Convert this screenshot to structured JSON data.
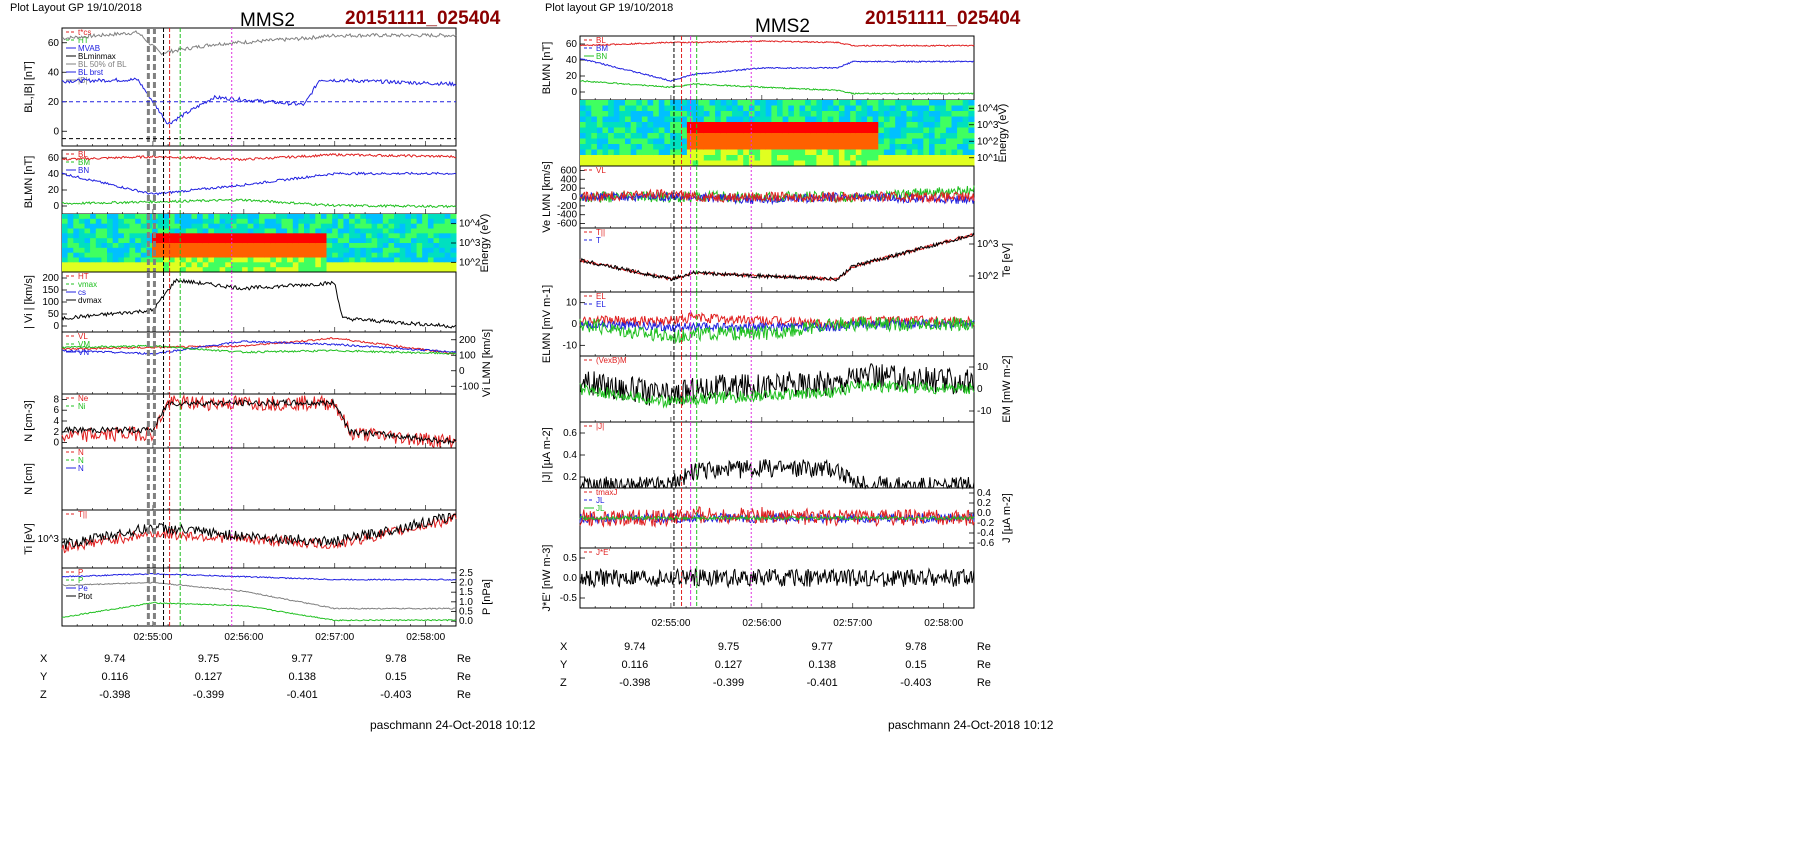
{
  "left": {
    "plot_layout": "Plot Layout GP 19/10/2018",
    "title": "MMS2",
    "event": "20151111_025404",
    "footer": "paschmann 24-Oct-2018 10:12"
  },
  "right": {
    "plot_layout": "Plot layout GP 19/10/2018",
    "title": "MMS2",
    "event": "20151111_025404",
    "footer": "paschmann 24-Oct-2018 10:12"
  },
  "time_ticks": [
    "02:55:00",
    "02:56:00",
    "02:57:00",
    "02:58:00"
  ],
  "position": {
    "rows": [
      {
        "label": "X",
        "values": [
          "9.74",
          "9.75",
          "9.77",
          "9.78"
        ],
        "unit": "Re"
      },
      {
        "label": "Y",
        "values": [
          "0.116",
          "0.127",
          "0.138",
          "0.15"
        ],
        "unit": "Re"
      },
      {
        "label": "Z",
        "values": [
          "-0.398",
          "-0.399",
          "-0.401",
          "-0.403"
        ],
        "unit": "Re"
      }
    ]
  },
  "colors": {
    "black": "#000000",
    "red": "#e02020",
    "green": "#20c020",
    "blue": "#2020e0",
    "gray": "#808080",
    "magenta": "#e030e0",
    "darkred": "#8b0000",
    "cyan": "#00b0e0"
  },
  "chart_data": [
    {
      "type": "line",
      "panel": "left-1",
      "ylabel": "BL,|B| [nT]",
      "yticks": [
        "0",
        "20",
        "40",
        "60"
      ],
      "ylim": [
        -5,
        75
      ],
      "legend": [
        "t*cs",
        "HT",
        "MVAB",
        "BLminmax",
        "BL 50% of BL",
        "BL brst",
        "|B|"
      ],
      "series": [
        {
          "name": "|B|",
          "x": [
            "02:54:00",
            "02:54:50",
            "02:55:05",
            "02:55:40",
            "02:56:40",
            "02:57:00",
            "02:58:20"
          ],
          "y": [
            68,
            72,
            58,
            64,
            68,
            70,
            70
          ]
        },
        {
          "name": "BL brst",
          "x": [
            "02:54:00",
            "02:54:50",
            "02:55:10",
            "02:55:40",
            "02:56:40",
            "02:56:50",
            "02:58:20"
          ],
          "y": [
            39,
            40,
            10,
            28,
            23,
            40,
            37
          ]
        }
      ]
    },
    {
      "type": "line",
      "panel": "left-2",
      "ylabel": "BLMN [nT]",
      "yticks": [
        "0",
        "20",
        "40",
        "60"
      ],
      "legend": [
        "BL",
        "BM",
        "BN"
      ],
      "series": [
        {
          "name": "BL",
          "x": [
            "02:54:00",
            "02:55:00",
            "02:56:00",
            "02:57:00",
            "02:58:20"
          ],
          "y": [
            55,
            58,
            55,
            60,
            58
          ]
        },
        {
          "name": "BM",
          "x": [
            "02:54:00",
            "02:55:00",
            "02:56:00",
            "02:57:00",
            "02:58:20"
          ],
          "y": [
            40,
            18,
            28,
            40,
            40
          ]
        },
        {
          "name": "BN",
          "x": [
            "02:54:00",
            "02:55:00",
            "02:56:00",
            "02:57:00",
            "02:58:20"
          ],
          "y": [
            8,
            10,
            12,
            6,
            5
          ]
        }
      ]
    },
    {
      "type": "heatmap",
      "panel": "left-3",
      "ylabel": "Energy (eV)",
      "yticks": [
        "10^2",
        "10^3",
        "10^4"
      ]
    },
    {
      "type": "line",
      "panel": "left-4",
      "ylabel": "| Vi | [km/s]",
      "yticks": [
        "0",
        "50",
        "100",
        "150",
        "200"
      ],
      "legend": [
        "HT",
        "vmax",
        "cs",
        "dvmax"
      ],
      "series": [
        {
          "name": "|Vi|",
          "x": [
            "02:54:00",
            "02:55:00",
            "02:55:15",
            "02:56:00",
            "02:57:00",
            "02:57:05",
            "02:58:20"
          ],
          "y": [
            50,
            80,
            190,
            160,
            180,
            50,
            20
          ]
        }
      ]
    },
    {
      "type": "line",
      "panel": "left-5",
      "ylabel": "Vi LMN [km/s]",
      "yticks": [
        "-100",
        "0",
        "100",
        "200"
      ],
      "legend": [
        "VL",
        "VM",
        "VN"
      ]
    },
    {
      "type": "line",
      "panel": "left-6",
      "ylabel": "N [cm-3]",
      "yticks": [
        "0",
        "2",
        "4",
        "6",
        "8"
      ],
      "legend": [
        "Ne",
        "Ni"
      ],
      "series": [
        {
          "name": "Ne",
          "x": [
            "02:54:00",
            "02:55:00",
            "02:55:10",
            "02:57:00",
            "02:57:10",
            "02:58:20"
          ],
          "y": [
            2,
            2.5,
            7.5,
            7.5,
            2.5,
            1
          ]
        },
        {
          "name": "Ni",
          "x": [
            "02:54:00",
            "02:55:00",
            "02:55:10",
            "02:57:00",
            "02:57:10",
            "02:58:20"
          ],
          "y": [
            3,
            3,
            7.5,
            7.5,
            2.8,
            1
          ]
        }
      ]
    },
    {
      "type": "line",
      "panel": "left-7",
      "ylabel": "N [cm]",
      "legend": [
        "N",
        "N",
        "N"
      ]
    },
    {
      "type": "line",
      "panel": "left-8",
      "ylabel": "Ti [eV]",
      "yticks": [
        "10^3"
      ],
      "legend": [
        "T||"
      ]
    },
    {
      "type": "line",
      "panel": "left-9",
      "ylabel": "P [nPa]",
      "yticks": [
        "0.0",
        "0.5",
        "1.0",
        "1.5",
        "2.0",
        "2.5"
      ],
      "legend": [
        "P",
        "P",
        "Pe",
        "Ptot"
      ]
    },
    {
      "type": "line",
      "panel": "right-1",
      "ylabel": "BLMN [nT]",
      "yticks": [
        "0",
        "20",
        "40",
        "60"
      ],
      "legend": [
        "BL",
        "BM",
        "BN"
      ]
    },
    {
      "type": "heatmap",
      "panel": "right-2",
      "ylabel": "Energy (eV)",
      "yticks": [
        "10^1",
        "10^2",
        "10^3",
        "10^4"
      ]
    },
    {
      "type": "line",
      "panel": "right-3",
      "ylabel": "Ve LMN [km/s]",
      "yticks": [
        "-600",
        "-400",
        "-200",
        "0",
        "200",
        "400",
        "600"
      ],
      "legend": [
        "VL"
      ]
    },
    {
      "type": "line",
      "panel": "right-4",
      "ylabel": "Te [eV]",
      "yticks": [
        "10^2",
        "10^3"
      ],
      "legend": [
        "T||",
        "T"
      ]
    },
    {
      "type": "line",
      "panel": "right-5",
      "ylabel": "ELMN [mV m-1]",
      "yticks": [
        "-10",
        "0",
        "10"
      ],
      "legend": [
        "EL",
        "EL"
      ]
    },
    {
      "type": "line",
      "panel": "right-6",
      "ylabel": "EM [mW m-2]",
      "yticks": [
        "-10",
        "0",
        "10"
      ],
      "legend": [
        "(VexB)M"
      ]
    },
    {
      "type": "line",
      "panel": "right-7",
      "ylabel": "|J| [µA m-2]",
      "yticks": [
        "0.2",
        "0.4",
        "0.6"
      ],
      "legend": [
        "|J|"
      ]
    },
    {
      "type": "line",
      "panel": "right-8",
      "ylabel": "J [µA m-2]",
      "yticks": [
        "-0.6",
        "-0.4",
        "-0.2",
        "0.0",
        "0.2",
        "0.4"
      ],
      "legend": [
        "tmaxJ",
        "JL",
        "JL"
      ]
    },
    {
      "type": "line",
      "panel": "right-9",
      "ylabel": "J*E' [nW m-3]",
      "yticks": [
        "-0.5",
        "0.0",
        "0.5"
      ],
      "legend": [
        "J*E'"
      ]
    }
  ]
}
